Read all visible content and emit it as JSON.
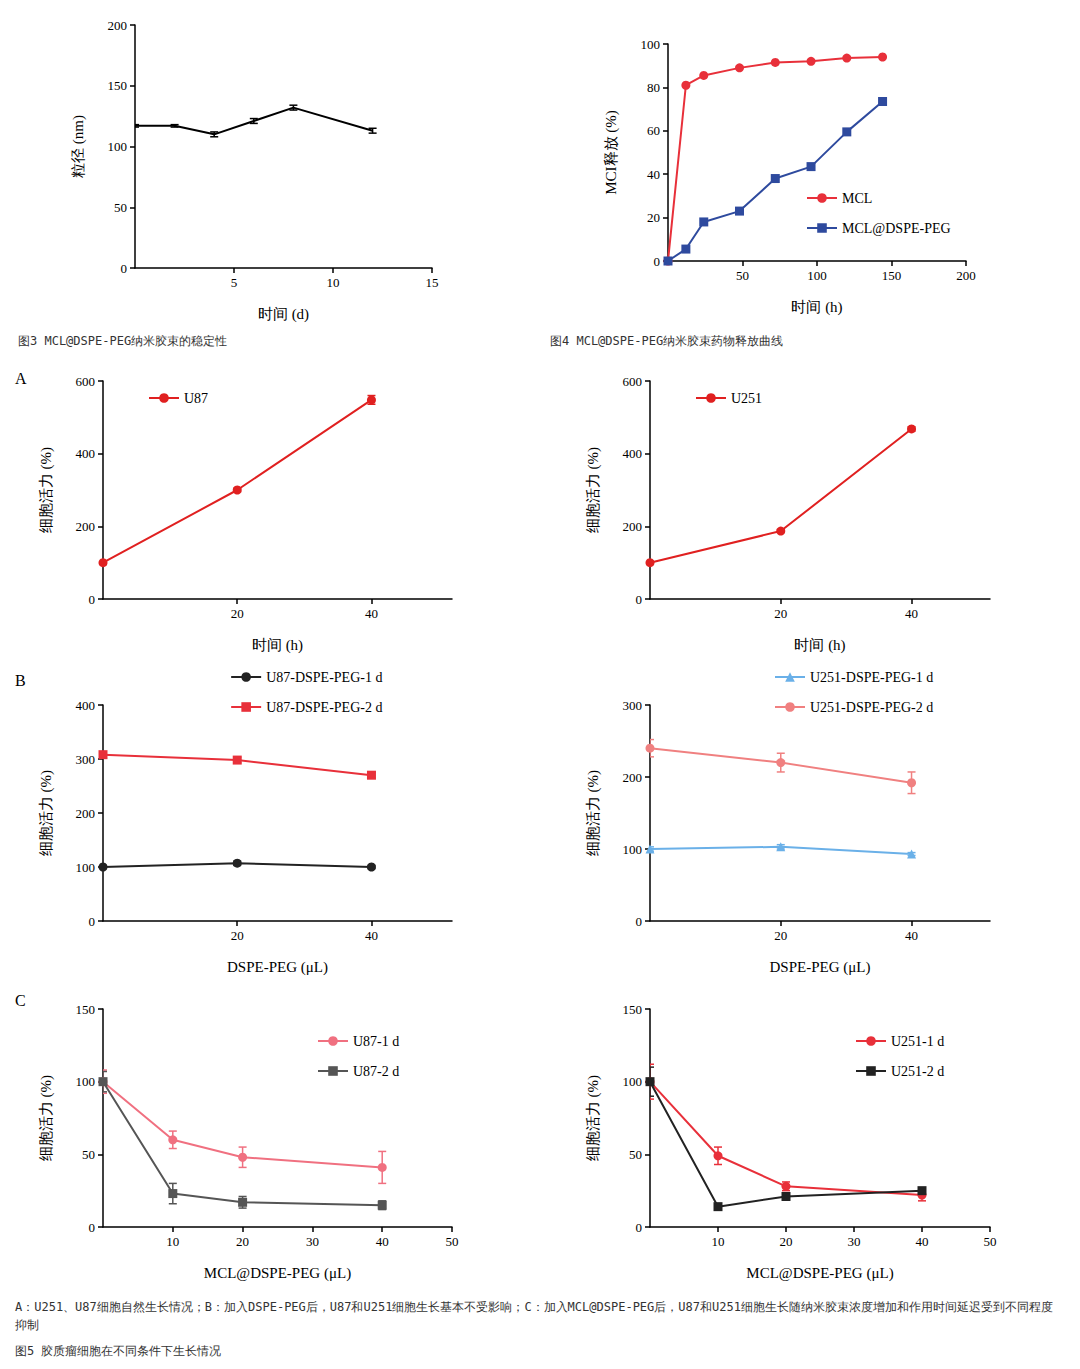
{
  "chart_data": [
    {
      "type": "line",
      "xlabel": "时间 (d)",
      "ylabel": "粒径 (nm)",
      "xlim": [
        0,
        15
      ],
      "xticks": [
        5,
        10,
        15
      ],
      "ylim": [
        0,
        200
      ],
      "yticks": [
        0,
        50,
        100,
        150,
        200
      ],
      "x": [
        0,
        2,
        4,
        6,
        8,
        12
      ],
      "series": [
        {
          "color": "#000000",
          "marker": "none",
          "values": [
            117,
            117,
            110,
            121,
            132,
            113
          ],
          "errors": [
            1,
            1,
            2,
            2,
            2,
            2
          ]
        }
      ]
    },
    {
      "type": "line",
      "xlabel": "时间 (h)",
      "ylabel": "MCI释放 (%)",
      "legend": "lower right",
      "xlim": [
        0,
        200
      ],
      "xticks": [
        50,
        100,
        150,
        200
      ],
      "ylim": [
        0,
        100
      ],
      "yticks": [
        0,
        20,
        40,
        60,
        80,
        100
      ],
      "x": [
        0,
        12,
        24,
        48,
        72,
        96,
        120,
        144
      ],
      "series": [
        {
          "name": "MCL",
          "color": "#e8303a",
          "marker": "circle",
          "values": [
            0,
            81,
            85.5,
            89,
            91.5,
            92,
            93.5,
            94
          ]
        },
        {
          "name": "MCL@DSPE-PEG",
          "color": "#2e4a9e",
          "marker": "square",
          "values": [
            0,
            5.5,
            18,
            23,
            38,
            43.5,
            59.5,
            73.5
          ]
        }
      ]
    },
    {
      "type": "line",
      "xlabel": "时间 (h)",
      "ylabel": "细胞活力 (%)",
      "legend": "upper left",
      "xlim": [
        0,
        52
      ],
      "xticks": [
        20,
        40
      ],
      "ylim": [
        0,
        600
      ],
      "yticks": [
        0,
        200,
        400,
        600
      ],
      "x": [
        0,
        20,
        40
      ],
      "series": [
        {
          "name": "U87",
          "color": "#e02020",
          "marker": "circle",
          "values": [
            100,
            300,
            548
          ],
          "errors": [
            5,
            5,
            12
          ]
        }
      ]
    },
    {
      "type": "line",
      "xlabel": "时间 (h)",
      "ylabel": "细胞活力 (%)",
      "legend": "upper left",
      "xlim": [
        0,
        52
      ],
      "xticks": [
        20,
        40
      ],
      "ylim": [
        0,
        600
      ],
      "yticks": [
        0,
        200,
        400,
        600
      ],
      "x": [
        0,
        20,
        40
      ],
      "series": [
        {
          "name": "U251",
          "color": "#e02020",
          "marker": "circle",
          "values": [
            100,
            187,
            468
          ],
          "errors": [
            4,
            4,
            6
          ]
        }
      ]
    },
    {
      "type": "line",
      "xlabel": "DSPE-PEG (μL)",
      "ylabel": "细胞活力 (%)",
      "legend": "top",
      "xlim": [
        0,
        52
      ],
      "xticks": [
        20,
        40
      ],
      "ylim": [
        0,
        400
      ],
      "yticks": [
        0,
        100,
        200,
        300,
        400
      ],
      "x": [
        0,
        20,
        40
      ],
      "series": [
        {
          "name": "U87-DSPE-PEG-1 d",
          "color": "#222222",
          "marker": "circle",
          "values": [
            100,
            107,
            100
          ],
          "errors": [
            3,
            4,
            3
          ]
        },
        {
          "name": "U87-DSPE-PEG-2 d",
          "color": "#e8303a",
          "marker": "square",
          "values": [
            308,
            298,
            270
          ],
          "errors": [
            4,
            5,
            5
          ]
        }
      ]
    },
    {
      "type": "line",
      "xlabel": "DSPE-PEG (μL)",
      "ylabel": "细胞活力 (%)",
      "legend": "top",
      "xlim": [
        0,
        52
      ],
      "xticks": [
        20,
        40
      ],
      "ylim": [
        0,
        300
      ],
      "yticks": [
        0,
        100,
        200,
        300
      ],
      "x": [
        0,
        20,
        40
      ],
      "series": [
        {
          "name": "U251-DSPE-PEG-1 d",
          "color": "#6ab0e8",
          "marker": "triangle",
          "values": [
            100,
            103,
            93
          ],
          "errors": [
            3,
            3,
            2
          ]
        },
        {
          "name": "U251-DSPE-PEG-2 d",
          "color": "#f08080",
          "marker": "circle",
          "values": [
            240,
            220,
            192
          ],
          "errors": [
            12,
            13,
            15
          ]
        }
      ]
    },
    {
      "type": "line",
      "xlabel": "MCL@DSPE-PEG (μL)",
      "ylabel": "细胞活力 (%)",
      "legend": "upper right",
      "xlim": [
        0,
        50
      ],
      "xticks": [
        10,
        20,
        30,
        40,
        50
      ],
      "ylim": [
        0,
        150
      ],
      "yticks": [
        0,
        50,
        100,
        150
      ],
      "x": [
        0,
        10,
        20,
        40
      ],
      "series": [
        {
          "name": "U87-1 d",
          "color": "#f07080",
          "marker": "circle",
          "values": [
            100,
            60,
            48,
            41
          ],
          "errors": [
            8,
            6,
            7,
            11
          ]
        },
        {
          "name": "U87-2 d",
          "color": "#555555",
          "marker": "square",
          "values": [
            100,
            23,
            17,
            15
          ],
          "errors": [
            7,
            7,
            4,
            3
          ]
        }
      ]
    },
    {
      "type": "line",
      "xlabel": "MCL@DSPE-PEG (μL)",
      "ylabel": "细胞活力 (%)",
      "legend": "upper right",
      "xlim": [
        0,
        50
      ],
      "xticks": [
        10,
        20,
        30,
        40,
        50
      ],
      "ylim": [
        0,
        150
      ],
      "yticks": [
        0,
        50,
        100,
        150
      ],
      "x": [
        0,
        10,
        20,
        40
      ],
      "series": [
        {
          "name": "U251-1 d",
          "color": "#e8303a",
          "marker": "circle",
          "values": [
            100,
            49,
            28,
            22
          ],
          "errors": [
            12,
            6,
            3,
            4
          ]
        },
        {
          "name": "U251-2 d",
          "color": "#222222",
          "marker": "square",
          "values": [
            100,
            14,
            21,
            25
          ],
          "errors": [
            10,
            2,
            2,
            2
          ]
        }
      ]
    }
  ],
  "panel_labels": [
    "A",
    "B",
    "C"
  ],
  "captions": [
    "图3  MCL@DSPE-PEG纳米胶束的稳定性",
    "图4  MCL@DSPE-PEG纳米胶束药物释放曲线",
    "A：U251、U87细胞自然生长情况；B：加入DSPE-PEG后，U87和U251细胞生长基本不受影响；C：加入MCL@DSPE-PEG后，U87和U251细胞生长随纳米胶束浓度增加和作用时间延迟受到不同程度抑制",
    "图5  胶质瘤细胞在不同条件下生长情况"
  ]
}
